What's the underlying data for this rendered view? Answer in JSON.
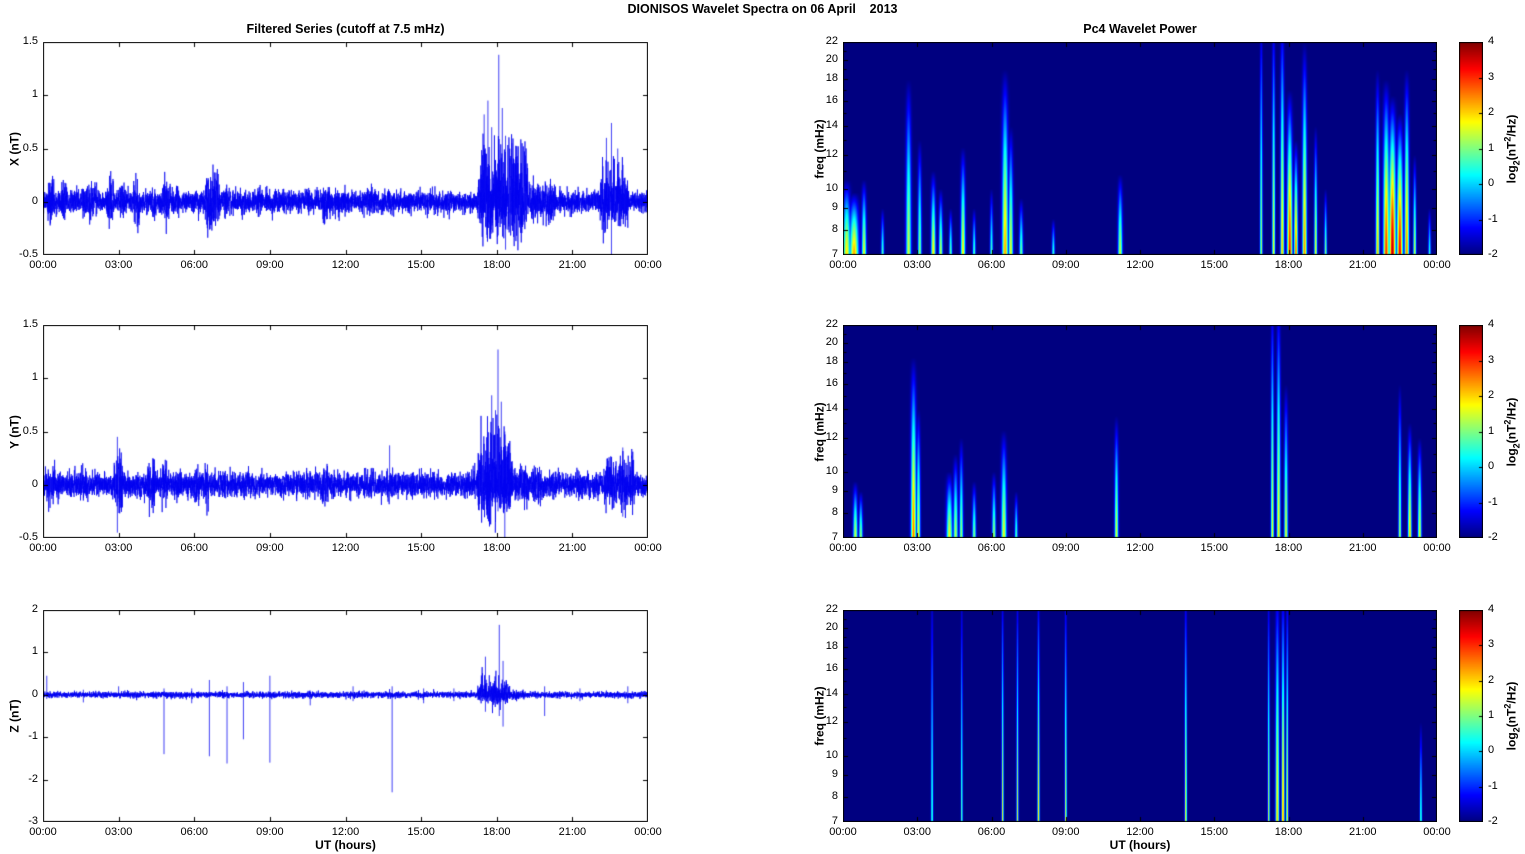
{
  "figure_title": "DIONISOS Wavelet Spectra on 06 April    2013",
  "left_column_title": "Filtered Series (cutoff at 7.5 mHz)",
  "right_column_title": "Pc4 Wavelet Power",
  "x_axis_label": "UT (hours)",
  "x_tick_labels": [
    "00:00",
    "03:00",
    "06:00",
    "09:00",
    "12:00",
    "15:00",
    "18:00",
    "21:00",
    "00:00"
  ],
  "colorbar": {
    "colormap": "jet",
    "ticks": [
      4,
      3,
      2,
      1,
      0,
      -1,
      -2
    ],
    "label_parts": {
      "p1": "log",
      "sub": "2",
      "p2": "(nT",
      "sup": "2",
      "p3": "/Hz)"
    },
    "min_color": "#000083",
    "max_color": "#800000"
  },
  "chart_data": [
    {
      "id": "x-filtered-series",
      "type": "line",
      "ylabel": "X (nT)",
      "ylim": [
        -0.5,
        1.5
      ],
      "yticks": [
        1.5,
        1,
        0.5,
        0,
        -0.5
      ],
      "xlim_hours": [
        0,
        24
      ],
      "line_color": "#0000f0",
      "noise_amp": 0.05,
      "seed": 11,
      "bursts_format": [
        "t0_h",
        "t1_h",
        "extra_noise_amp_nT",
        "negative_side_scale"
      ],
      "bursts": [
        [
          0.15,
          0.45,
          0.09,
          1
        ],
        [
          0.7,
          0.95,
          0.08,
          1
        ],
        [
          1.5,
          2.2,
          0.06,
          1
        ],
        [
          2.5,
          2.85,
          0.1,
          1
        ],
        [
          3.0,
          3.3,
          0.08,
          1
        ],
        [
          3.55,
          3.85,
          0.11,
          1
        ],
        [
          4.3,
          4.5,
          0.06,
          1
        ],
        [
          4.75,
          5.05,
          0.11,
          1
        ],
        [
          5.25,
          5.45,
          0.06,
          1
        ],
        [
          6.35,
          7.05,
          0.13,
          1
        ],
        [
          7.15,
          7.35,
          0.06,
          1
        ],
        [
          8.4,
          8.7,
          0.05,
          1
        ],
        [
          11.05,
          11.45,
          0.08,
          1
        ],
        [
          12.9,
          13.3,
          0.05,
          1
        ],
        [
          17.25,
          19.25,
          0.28,
          0.55
        ],
        [
          19.25,
          20.4,
          0.08,
          1
        ],
        [
          22.05,
          23.25,
          0.17,
          0.75
        ]
      ],
      "spikes_format": [
        "t_h",
        "min_nT",
        "max_nT"
      ],
      "spikes": [
        [
          17.5,
          null,
          0.82
        ],
        [
          17.65,
          null,
          0.95
        ],
        [
          17.8,
          -0.3,
          0.7
        ],
        [
          18.08,
          -0.2,
          1.38
        ],
        [
          18.22,
          null,
          0.88
        ],
        [
          18.35,
          -0.45,
          0.62
        ],
        [
          18.6,
          null,
          0.55
        ],
        [
          22.35,
          null,
          0.6
        ],
        [
          22.55,
          -0.5,
          0.74
        ],
        [
          22.8,
          null,
          0.5
        ]
      ]
    },
    {
      "id": "y-filtered-series",
      "type": "line",
      "ylabel": "Y (nT)",
      "ylim": [
        -0.5,
        1.5
      ],
      "yticks": [
        1.5,
        1,
        0.5,
        0,
        -0.5
      ],
      "xlim_hours": [
        0,
        24
      ],
      "line_color": "#0000f0",
      "noise_amp": 0.055,
      "seed": 22,
      "bursts_format": [
        "t0_h",
        "t1_h",
        "extra_noise_amp_nT",
        "negative_side_scale"
      ],
      "bursts": [
        [
          0.15,
          0.5,
          0.07,
          1
        ],
        [
          1.45,
          1.8,
          0.07,
          1
        ],
        [
          2.8,
          3.2,
          0.13,
          1
        ],
        [
          4.1,
          4.5,
          0.1,
          1
        ],
        [
          4.6,
          4.95,
          0.08,
          1
        ],
        [
          5.2,
          5.5,
          0.06,
          1
        ],
        [
          5.95,
          6.25,
          0.07,
          1
        ],
        [
          6.4,
          6.7,
          0.08,
          1
        ],
        [
          7.9,
          8.2,
          0.06,
          1
        ],
        [
          11.0,
          11.35,
          0.07,
          1
        ],
        [
          13.6,
          13.9,
          0.05,
          1
        ],
        [
          17.2,
          18.65,
          0.24,
          0.6
        ],
        [
          18.65,
          19.8,
          0.07,
          1
        ],
        [
          22.2,
          23.55,
          0.1,
          0.9
        ]
      ],
      "spikes_format": [
        "t_h",
        "min_nT",
        "max_nT"
      ],
      "spikes": [
        [
          2.95,
          -0.45,
          0.45
        ],
        [
          13.75,
          null,
          0.37
        ],
        [
          17.8,
          null,
          0.84
        ],
        [
          17.95,
          -0.35,
          0.7
        ],
        [
          18.05,
          -0.25,
          1.27
        ],
        [
          18.18,
          null,
          0.78
        ],
        [
          18.32,
          -0.55,
          0.5
        ],
        [
          23.0,
          -0.3,
          0.35
        ]
      ]
    },
    {
      "id": "z-filtered-series",
      "type": "line",
      "ylabel": "Z (nT)",
      "ylim": [
        -3,
        2
      ],
      "yticks": [
        2,
        1,
        0,
        -1,
        -2,
        -3
      ],
      "xlim_hours": [
        0,
        24
      ],
      "line_color": "#0000f0",
      "noise_amp": 0.035,
      "seed": 33,
      "bursts_format": [
        "t0_h",
        "t1_h",
        "extra_noise_amp_nT",
        "negative_side_scale"
      ],
      "bursts": [
        [
          17.2,
          18.55,
          0.2,
          0.6
        ],
        [
          18.55,
          19.2,
          0.05,
          1
        ]
      ],
      "spikes_format": [
        "t_h",
        "min_nT",
        "max_nT"
      ],
      "spikes": [
        [
          0.15,
          -0.1,
          0.45
        ],
        [
          1.6,
          -0.18,
          0.12
        ],
        [
          3.0,
          null,
          0.2
        ],
        [
          4.8,
          -1.4,
          0.15
        ],
        [
          5.9,
          -0.2,
          0.15
        ],
        [
          6.6,
          -1.45,
          0.35
        ],
        [
          7.3,
          -1.62,
          0.2
        ],
        [
          7.95,
          -1.05,
          0.3
        ],
        [
          9.0,
          -1.6,
          0.45
        ],
        [
          10.6,
          -0.25,
          0.1
        ],
        [
          12.3,
          -0.15,
          0.2
        ],
        [
          13.85,
          -2.3,
          0.2
        ],
        [
          15.1,
          -0.2,
          0.15
        ],
        [
          16.3,
          -0.15,
          0.15
        ],
        [
          17.55,
          -0.4,
          0.9
        ],
        [
          18.1,
          -0.5,
          1.65
        ],
        [
          18.25,
          -0.75,
          0.8
        ],
        [
          19.9,
          -0.5,
          0.2
        ],
        [
          21.3,
          -0.15,
          0.15
        ],
        [
          23.2,
          -0.2,
          0.2
        ]
      ]
    },
    {
      "id": "x-wavelet-power",
      "type": "heatmap",
      "ylabel": "freq (mHz)",
      "flim": [
        7,
        22
      ],
      "freq_scale": "log",
      "yticks": [
        22,
        20,
        18,
        16,
        14,
        12,
        10,
        9,
        8,
        7
      ],
      "clim": [
        -2,
        4
      ],
      "events_format": [
        "t_h",
        "sigma_h",
        "f_top_mHz",
        "peak_log2_power"
      ],
      "events": [
        [
          0.15,
          0.1,
          10.5,
          1.9
        ],
        [
          0.45,
          0.12,
          9.8,
          2.3
        ],
        [
          0.85,
          0.06,
          10.5,
          1.7
        ],
        [
          1.6,
          0.04,
          9,
          0.7
        ],
        [
          2.65,
          0.07,
          18,
          1.5
        ],
        [
          3.1,
          0.05,
          13,
          1.2
        ],
        [
          3.65,
          0.06,
          11,
          1.9
        ],
        [
          3.95,
          0.05,
          10,
          1.5
        ],
        [
          4.35,
          0.04,
          9,
          0.9
        ],
        [
          4.85,
          0.06,
          12.5,
          1.9
        ],
        [
          5.3,
          0.04,
          9,
          0.8
        ],
        [
          6.0,
          0.04,
          10,
          0.7
        ],
        [
          6.55,
          0.08,
          19,
          2.3
        ],
        [
          6.78,
          0.06,
          14,
          1.7
        ],
        [
          7.2,
          0.05,
          9.5,
          1.0
        ],
        [
          8.5,
          0.04,
          8.5,
          0.6
        ],
        [
          11.2,
          0.06,
          10.8,
          1.5
        ],
        [
          16.9,
          0.035,
          26,
          1.3
        ],
        [
          17.4,
          0.04,
          26,
          1.7
        ],
        [
          17.75,
          0.05,
          26,
          2.1
        ],
        [
          18.05,
          0.07,
          17,
          3.2
        ],
        [
          18.3,
          0.05,
          13,
          2.7
        ],
        [
          18.65,
          0.06,
          22,
          2.4
        ],
        [
          19.1,
          0.04,
          14,
          1.7
        ],
        [
          19.5,
          0.035,
          10,
          1.1
        ],
        [
          21.6,
          0.05,
          19,
          2.1
        ],
        [
          21.95,
          0.08,
          18,
          3.0
        ],
        [
          22.2,
          0.09,
          16.5,
          3.7
        ],
        [
          22.5,
          0.08,
          15,
          3.4
        ],
        [
          22.78,
          0.06,
          19,
          2.5
        ],
        [
          23.1,
          0.04,
          12,
          1.5
        ],
        [
          23.7,
          0.035,
          9,
          0.5
        ]
      ]
    },
    {
      "id": "y-wavelet-power",
      "type": "heatmap",
      "ylabel": "freq (mHz)",
      "flim": [
        7,
        22
      ],
      "freq_scale": "log",
      "yticks": [
        22,
        20,
        18,
        16,
        14,
        12,
        10,
        9,
        8,
        7
      ],
      "clim": [
        -2,
        4
      ],
      "events_format": [
        "t_h",
        "sigma_h",
        "f_top_mHz",
        "peak_log2_power"
      ],
      "events": [
        [
          0.5,
          0.06,
          9.5,
          1.5
        ],
        [
          0.72,
          0.05,
          9,
          1.2
        ],
        [
          2.85,
          0.07,
          18.5,
          2.6
        ],
        [
          3.05,
          0.05,
          14,
          1.7
        ],
        [
          4.3,
          0.08,
          10,
          1.7
        ],
        [
          4.55,
          0.06,
          11,
          1.4
        ],
        [
          4.78,
          0.05,
          12,
          1.2
        ],
        [
          5.3,
          0.05,
          9.5,
          1.1
        ],
        [
          6.1,
          0.05,
          10,
          1.3
        ],
        [
          6.5,
          0.07,
          12.5,
          1.7
        ],
        [
          7.0,
          0.04,
          9,
          0.8
        ],
        [
          11.05,
          0.05,
          13.5,
          1.6
        ],
        [
          17.35,
          0.04,
          26,
          1.7
        ],
        [
          17.6,
          0.05,
          26,
          1.9
        ],
        [
          17.9,
          0.05,
          16,
          1.6
        ],
        [
          22.5,
          0.04,
          16,
          1.3
        ],
        [
          22.9,
          0.05,
          13,
          2.1
        ],
        [
          23.3,
          0.05,
          12,
          1.7
        ]
      ]
    },
    {
      "id": "z-wavelet-power",
      "type": "heatmap",
      "ylabel": "freq (mHz)",
      "flim": [
        7,
        22
      ],
      "freq_scale": "log",
      "yticks": [
        22,
        20,
        18,
        16,
        14,
        12,
        10,
        9,
        8,
        7
      ],
      "clim": [
        -2,
        4
      ],
      "events_format": [
        "t_h",
        "sigma_h",
        "f_top_mHz",
        "peak_log2_power"
      ],
      "events": [
        [
          3.6,
          0.03,
          26,
          0.7
        ],
        [
          4.8,
          0.025,
          26,
          0.9
        ],
        [
          6.45,
          0.028,
          26,
          1.6
        ],
        [
          7.05,
          0.028,
          26,
          1.4
        ],
        [
          7.9,
          0.03,
          26,
          1.8
        ],
        [
          9.0,
          0.028,
          26,
          1.5
        ],
        [
          13.85,
          0.03,
          26,
          1.8
        ],
        [
          17.2,
          0.028,
          26,
          1.4
        ],
        [
          17.55,
          0.05,
          26,
          2.0
        ],
        [
          17.78,
          0.04,
          26,
          2.4
        ],
        [
          17.95,
          0.03,
          26,
          1.8
        ],
        [
          23.35,
          0.03,
          12,
          0.8
        ]
      ]
    }
  ]
}
